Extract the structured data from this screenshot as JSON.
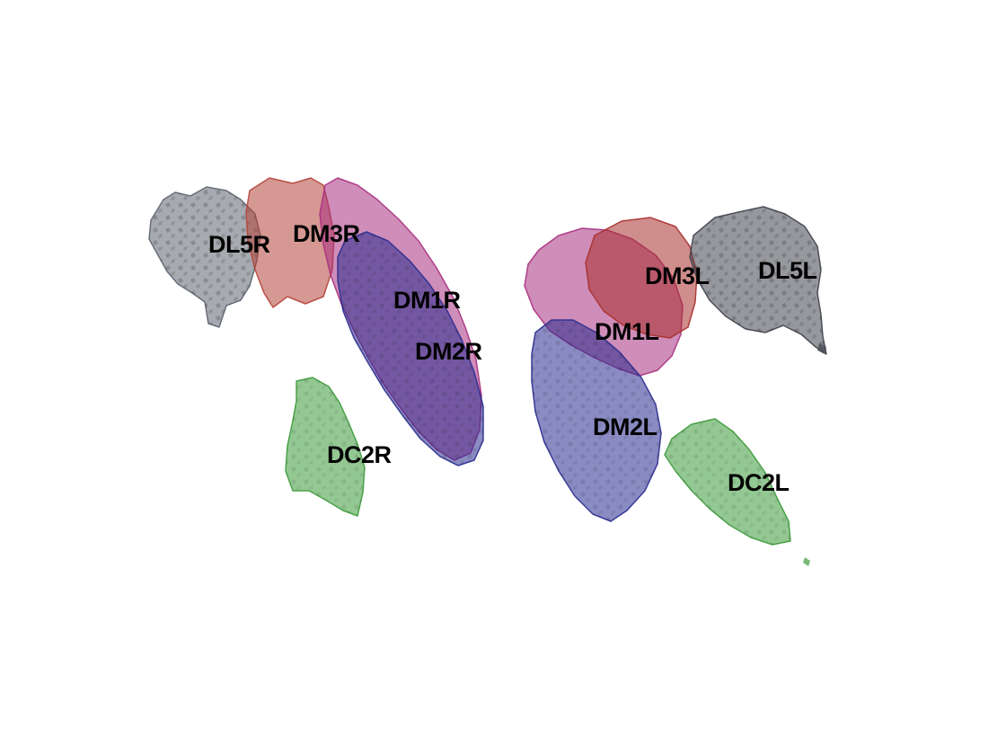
{
  "regions": [
    {
      "id": "dl5r",
      "label": "DL5R",
      "color": "#5f6470"
    },
    {
      "id": "dm3r",
      "label": "DM3R",
      "color": "#b4443a"
    },
    {
      "id": "dm1r",
      "label": "DM1R",
      "color": "#a8307f"
    },
    {
      "id": "dm2r",
      "label": "DM2R",
      "color": "#2a2c8f"
    },
    {
      "id": "dc2r",
      "label": "DC2R",
      "color": "#3d9a3a"
    },
    {
      "id": "dm1l",
      "label": "DM1L",
      "color": "#a8307f"
    },
    {
      "id": "dm3l",
      "label": "DM3L",
      "color": "#a8302c"
    },
    {
      "id": "dl5l",
      "label": "DL5L",
      "color": "#3f434d"
    },
    {
      "id": "dm2l",
      "label": "DM2L",
      "color": "#2a2c8f"
    },
    {
      "id": "dc2l",
      "label": "DC2L",
      "color": "#3d9a3a"
    }
  ]
}
